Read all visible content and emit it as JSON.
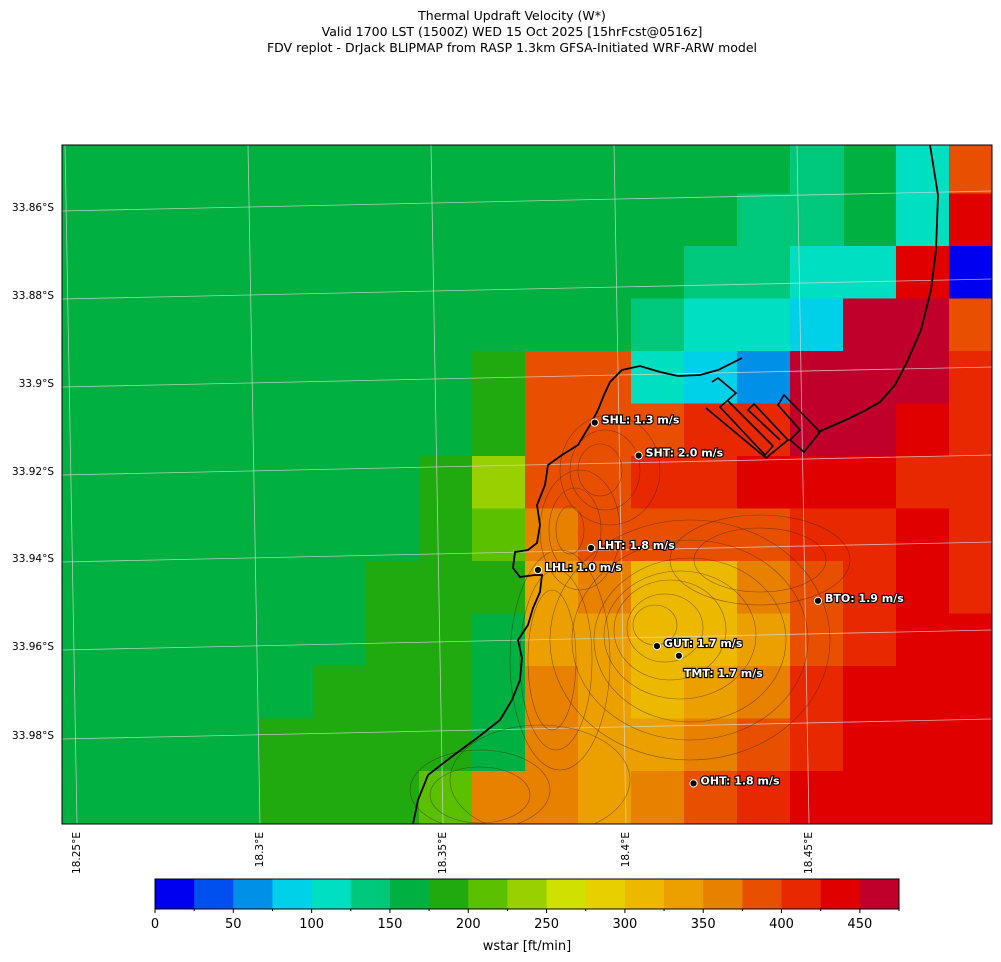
{
  "title": {
    "line1": "Thermal Updraft Velocity (W*)",
    "line2": "Valid 1700 LST (1500Z) WED 15 Oct 2025 [15hrFcst@0516z]",
    "line3": "FDV replot - DrJack BLIPMAP from RASP 1.3km GFSA-Initiated WRF-ARW model"
  },
  "lat_labels": [
    "33.86°S",
    "33.88°S",
    "33.9°S",
    "33.92°S",
    "33.94°S",
    "33.96°S",
    "33.98°S"
  ],
  "lon_labels": [
    "18.25°E",
    "18.3°E",
    "18.35°E",
    "18.4°E",
    "18.45°E"
  ],
  "colorbar": {
    "label": "wstar [ft/min]",
    "ticks": [
      "0",
      "50",
      "100",
      "150",
      "200",
      "250",
      "300",
      "350",
      "400",
      "450"
    ],
    "tick_values": [
      0,
      50,
      100,
      150,
      200,
      250,
      300,
      350,
      400,
      450
    ],
    "colors": [
      "#0000f0",
      "#0050f0",
      "#0090e8",
      "#00d0e8",
      "#00e0c0",
      "#00c87a",
      "#00b040",
      "#20aa10",
      "#5ac000",
      "#98d000",
      "#d0e000",
      "#e8d000",
      "#ecb800",
      "#eca000",
      "#e88000",
      "#e85000",
      "#e82800",
      "#e00000",
      "#c0002a"
    ],
    "min": 0,
    "max": 475,
    "step": 25
  },
  "stations": [
    {
      "label": "SHL: 1.3 m/s",
      "lon": 18.392,
      "lat": -33.909
    },
    {
      "label": "SHT: 2.0 m/s",
      "lon": 18.404,
      "lat": -33.9165
    },
    {
      "label": "LHT: 1.8 m/s",
      "lon": 18.391,
      "lat": -33.9375
    },
    {
      "label": "LHL: 1.0 m/s",
      "lon": 18.3765,
      "lat": -33.9425
    },
    {
      "label": "BTO: 1.9 m/s",
      "lon": 18.453,
      "lat": -33.9495
    },
    {
      "label": "GUT: 1.7 m/s",
      "lon": 18.409,
      "lat": -33.9598
    },
    {
      "label": "TMT: 1.7 m/s",
      "lon": 18.415,
      "lat": -33.962
    },
    {
      "label": "OHT: 1.8 m/s",
      "lon": 18.419,
      "lat": -33.991
    }
  ],
  "grid_cells": [
    {
      "r": 0,
      "c": 0,
      "v": 155
    },
    {
      "r": 0,
      "c": 13,
      "v": 155
    },
    {
      "r": 0,
      "c": 14,
      "v": 140
    },
    {
      "r": 0,
      "c": 16,
      "v": 120
    },
    {
      "r": 0,
      "c": 17,
      "v": 380
    },
    {
      "r": 1,
      "c": 13,
      "v": 140
    },
    {
      "r": 1,
      "c": 14,
      "v": 140
    },
    {
      "r": 1,
      "c": 16,
      "v": 110
    },
    {
      "r": 1,
      "c": 17,
      "v": 440
    },
    {
      "r": 2,
      "c": 12,
      "v": 145
    },
    {
      "r": 2,
      "c": 13,
      "v": 140
    },
    {
      "r": 2,
      "c": 14,
      "v": 110
    },
    {
      "r": 2,
      "c": 15,
      "v": 110
    },
    {
      "r": 2,
      "c": 16,
      "v": 440
    },
    {
      "r": 2,
      "c": 17,
      "v": 10
    },
    {
      "r": 3,
      "c": 11,
      "v": 140
    },
    {
      "r": 3,
      "c": 12,
      "v": 110
    },
    {
      "r": 3,
      "c": 13,
      "v": 110
    },
    {
      "r": 3,
      "c": 14,
      "v": 90
    },
    {
      "r": 3,
      "c": 15,
      "v": 460
    },
    {
      "r": 3,
      "c": 16,
      "v": 460
    },
    {
      "r": 3,
      "c": 17,
      "v": 390
    },
    {
      "r": 4,
      "c": 8,
      "v": 185
    },
    {
      "r": 4,
      "c": 9,
      "v": 390
    },
    {
      "r": 4,
      "c": 10,
      "v": 390
    },
    {
      "r": 4,
      "c": 11,
      "v": 110
    },
    {
      "r": 4,
      "c": 12,
      "v": 90
    },
    {
      "r": 4,
      "c": 13,
      "v": 60
    },
    {
      "r": 4,
      "c": 14,
      "v": 460
    },
    {
      "r": 4,
      "c": 15,
      "v": 460
    },
    {
      "r": 4,
      "c": 16,
      "v": 460
    },
    {
      "r": 4,
      "c": 17,
      "v": 420
    },
    {
      "r": 5,
      "c": 8,
      "v": 185
    },
    {
      "r": 5,
      "c": 9,
      "v": 390
    },
    {
      "r": 5,
      "c": 10,
      "v": 390
    },
    {
      "r": 5,
      "c": 11,
      "v": 380
    },
    {
      "r": 5,
      "c": 12,
      "v": 420
    },
    {
      "r": 5,
      "c": 13,
      "v": 420
    },
    {
      "r": 5,
      "c": 14,
      "v": 460
    },
    {
      "r": 5,
      "c": 15,
      "v": 460
    },
    {
      "r": 5,
      "c": 16,
      "v": 440
    },
    {
      "r": 5,
      "c": 17,
      "v": 420
    },
    {
      "r": 6,
      "c": 7,
      "v": 185
    },
    {
      "r": 6,
      "c": 8,
      "v": 230
    },
    {
      "r": 6,
      "c": 9,
      "v": 380
    },
    {
      "r": 6,
      "c": 10,
      "v": 390
    },
    {
      "r": 6,
      "c": 11,
      "v": 420
    },
    {
      "r": 6,
      "c": 12,
      "v": 420
    },
    {
      "r": 6,
      "c": 13,
      "v": 440
    },
    {
      "r": 6,
      "c": 14,
      "v": 440
    },
    {
      "r": 6,
      "c": 15,
      "v": 440
    },
    {
      "r": 6,
      "c": 16,
      "v": 420
    },
    {
      "r": 6,
      "c": 17,
      "v": 420
    },
    {
      "r": 7,
      "c": 7,
      "v": 185
    },
    {
      "r": 7,
      "c": 8,
      "v": 210
    },
    {
      "r": 7,
      "c": 9,
      "v": 360
    },
    {
      "r": 7,
      "c": 10,
      "v": 380
    },
    {
      "r": 7,
      "c": 11,
      "v": 390
    },
    {
      "r": 7,
      "c": 12,
      "v": 390
    },
    {
      "r": 7,
      "c": 13,
      "v": 390
    },
    {
      "r": 7,
      "c": 14,
      "v": 420
    },
    {
      "r": 7,
      "c": 15,
      "v": 420
    },
    {
      "r": 7,
      "c": 16,
      "v": 440
    },
    {
      "r": 7,
      "c": 17,
      "v": 420
    },
    {
      "r": 8,
      "c": 6,
      "v": 185
    },
    {
      "r": 8,
      "c": 7,
      "v": 185
    },
    {
      "r": 8,
      "c": 8,
      "v": 185
    },
    {
      "r": 8,
      "c": 9,
      "v": 340
    },
    {
      "r": 8,
      "c": 10,
      "v": 360
    },
    {
      "r": 8,
      "c": 11,
      "v": 310
    },
    {
      "r": 8,
      "c": 12,
      "v": 310
    },
    {
      "r": 8,
      "c": 13,
      "v": 360
    },
    {
      "r": 8,
      "c": 14,
      "v": 390
    },
    {
      "r": 8,
      "c": 15,
      "v": 420
    },
    {
      "r": 8,
      "c": 16,
      "v": 440
    },
    {
      "r": 8,
      "c": 17,
      "v": 420
    },
    {
      "r": 9,
      "c": 6,
      "v": 185
    },
    {
      "r": 9,
      "c": 7,
      "v": 185
    },
    {
      "r": 9,
      "c": 8,
      "v": 170
    },
    {
      "r": 9,
      "c": 9,
      "v": 340
    },
    {
      "r": 9,
      "c": 10,
      "v": 340
    },
    {
      "r": 9,
      "c": 11,
      "v": 310
    },
    {
      "r": 9,
      "c": 12,
      "v": 310
    },
    {
      "r": 9,
      "c": 13,
      "v": 340
    },
    {
      "r": 9,
      "c": 14,
      "v": 380
    },
    {
      "r": 9,
      "c": 15,
      "v": 420
    },
    {
      "r": 9,
      "c": 16,
      "v": 440
    },
    {
      "r": 9,
      "c": 17,
      "v": 440
    },
    {
      "r": 10,
      "c": 5,
      "v": 185
    },
    {
      "r": 10,
      "c": 6,
      "v": 185
    },
    {
      "r": 10,
      "c": 7,
      "v": 185
    },
    {
      "r": 10,
      "c": 8,
      "v": 170
    },
    {
      "r": 10,
      "c": 9,
      "v": 360
    },
    {
      "r": 10,
      "c": 10,
      "v": 340
    },
    {
      "r": 10,
      "c": 11,
      "v": 320
    },
    {
      "r": 10,
      "c": 12,
      "v": 330
    },
    {
      "r": 10,
      "c": 13,
      "v": 370
    },
    {
      "r": 10,
      "c": 14,
      "v": 400
    },
    {
      "r": 10,
      "c": 15,
      "v": 440
    },
    {
      "r": 10,
      "c": 16,
      "v": 440
    },
    {
      "r": 10,
      "c": 17,
      "v": 440
    },
    {
      "r": 11,
      "c": 4,
      "v": 185
    },
    {
      "r": 11,
      "c": 5,
      "v": 185
    },
    {
      "r": 11,
      "c": 6,
      "v": 185
    },
    {
      "r": 11,
      "c": 7,
      "v": 185
    },
    {
      "r": 11,
      "c": 8,
      "v": 160
    },
    {
      "r": 11,
      "c": 9,
      "v": 360
    },
    {
      "r": 11,
      "c": 10,
      "v": 340
    },
    {
      "r": 11,
      "c": 11,
      "v": 340
    },
    {
      "r": 11,
      "c": 12,
      "v": 350
    },
    {
      "r": 11,
      "c": 13,
      "v": 390
    },
    {
      "r": 11,
      "c": 14,
      "v": 420
    },
    {
      "r": 11,
      "c": 15,
      "v": 440
    },
    {
      "r": 11,
      "c": 16,
      "v": 440
    },
    {
      "r": 11,
      "c": 17,
      "v": 440
    },
    {
      "r": 12,
      "c": 4,
      "v": 185
    },
    {
      "r": 12,
      "c": 5,
      "v": 185
    },
    {
      "r": 12,
      "c": 6,
      "v": 185
    },
    {
      "r": 12,
      "c": 7,
      "v": 210
    },
    {
      "r": 12,
      "c": 8,
      "v": 360
    },
    {
      "r": 12,
      "c": 9,
      "v": 360
    },
    {
      "r": 12,
      "c": 10,
      "v": 340
    },
    {
      "r": 12,
      "c": 11,
      "v": 360
    },
    {
      "r": 12,
      "c": 12,
      "v": 380
    },
    {
      "r": 12,
      "c": 13,
      "v": 420
    },
    {
      "r": 12,
      "c": 14,
      "v": 440
    },
    {
      "r": 12,
      "c": 15,
      "v": 440
    },
    {
      "r": 12,
      "c": 16,
      "v": 440
    },
    {
      "r": 12,
      "c": 17,
      "v": 440
    },
    {
      "r": 13,
      "c": 4,
      "v": 185
    },
    {
      "r": 13,
      "c": 5,
      "v": 185
    },
    {
      "r": 13,
      "c": 6,
      "v": 185
    },
    {
      "r": 13,
      "c": 7,
      "v": 390
    },
    {
      "r": 13,
      "c": 8,
      "v": 360
    },
    {
      "r": 13,
      "c": 9,
      "v": 390
    },
    {
      "r": 13,
      "c": 10,
      "v": 360
    },
    {
      "r": 13,
      "c": 11,
      "v": 380
    },
    {
      "r": 13,
      "c": 12,
      "v": 420
    },
    {
      "r": 13,
      "c": 13,
      "v": 440
    },
    {
      "r": 13,
      "c": 14,
      "v": 440
    },
    {
      "r": 13,
      "c": 15,
      "v": 440
    },
    {
      "r": 13,
      "c": 16,
      "v": 440
    },
    {
      "r": 13,
      "c": 17,
      "v": 440
    }
  ]
}
